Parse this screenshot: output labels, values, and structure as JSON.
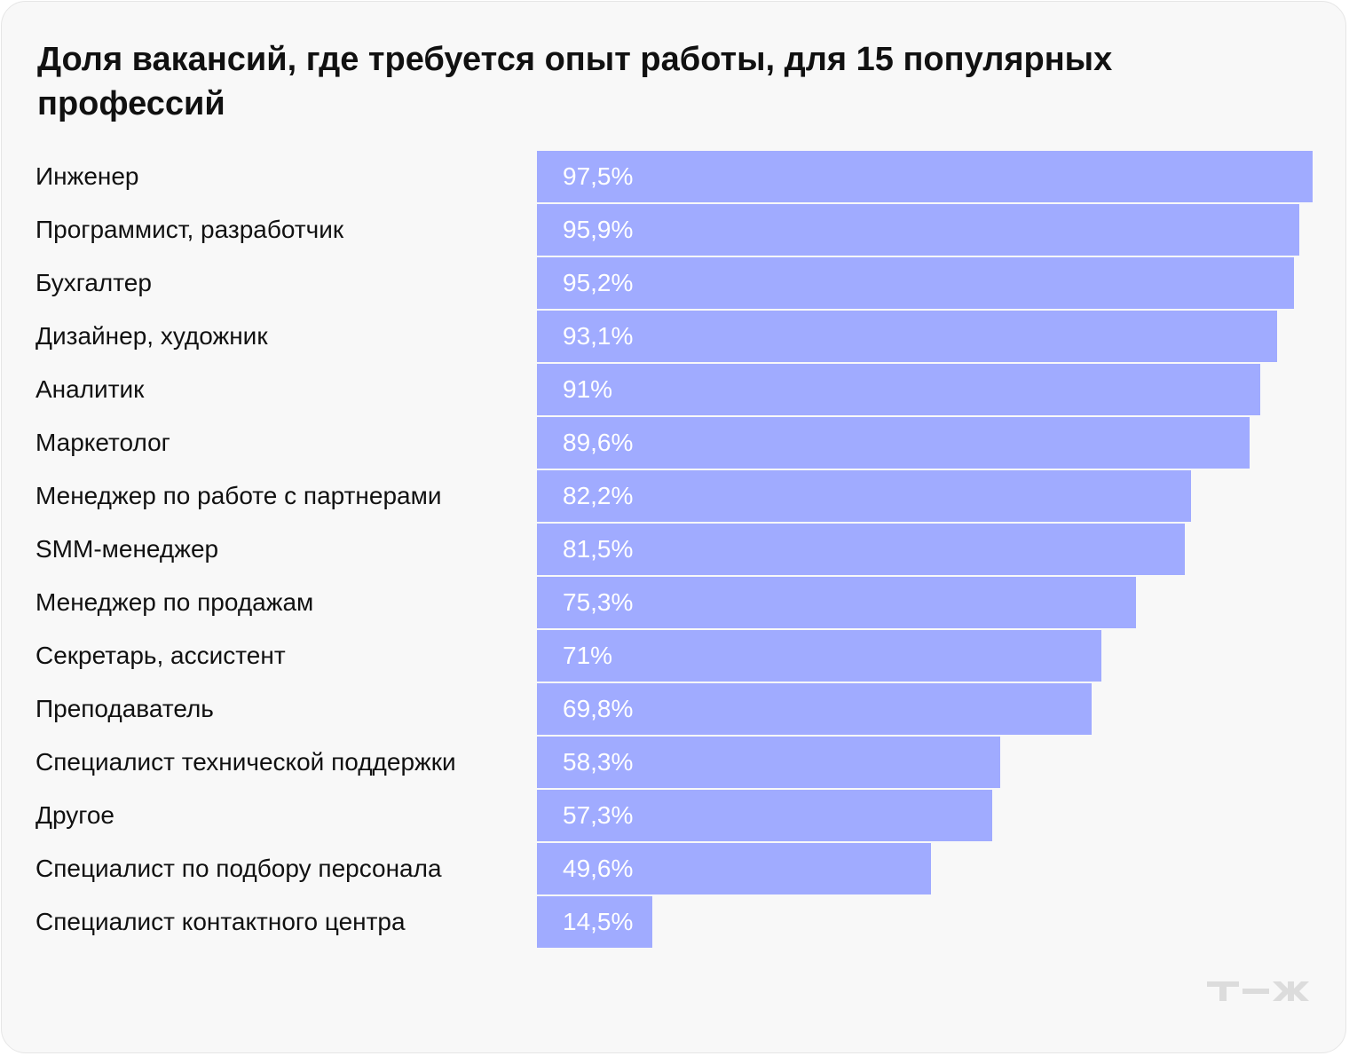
{
  "chart_data": {
    "type": "bar",
    "orientation": "horizontal",
    "title": "Доля вакансий, где требуется опыт работы, для 15 популярных профессий",
    "categories": [
      "Инженер",
      "Программист, разработчик",
      "Бухгалтер",
      "Дизайнер, художник",
      "Аналитик",
      "Маркетолог",
      "Менеджер по работе с партнерами",
      "SMM-менеджер",
      "Менеджер по продажам",
      "Секретарь, ассистент",
      "Преподаватель",
      "Специалист технической поддержки",
      "Другое",
      "Специалист по подбору персонала",
      "Специалист контактного центра"
    ],
    "values": [
      97.5,
      95.9,
      95.2,
      93.1,
      91,
      89.6,
      82.2,
      81.5,
      75.3,
      71,
      69.8,
      58.3,
      57.3,
      49.6,
      14.5
    ],
    "value_labels": [
      "97,5%",
      "95,9%",
      "95,2%",
      "93,1%",
      "91%",
      "89,6%",
      "82,2%",
      "81,5%",
      "75,3%",
      "71%",
      "69,8%",
      "58,3%",
      "57,3%",
      "49,6%",
      "14,5%"
    ],
    "xlim": [
      0,
      100
    ],
    "grid": false,
    "bar_color": "#a0abff"
  },
  "logo": "т—ж"
}
